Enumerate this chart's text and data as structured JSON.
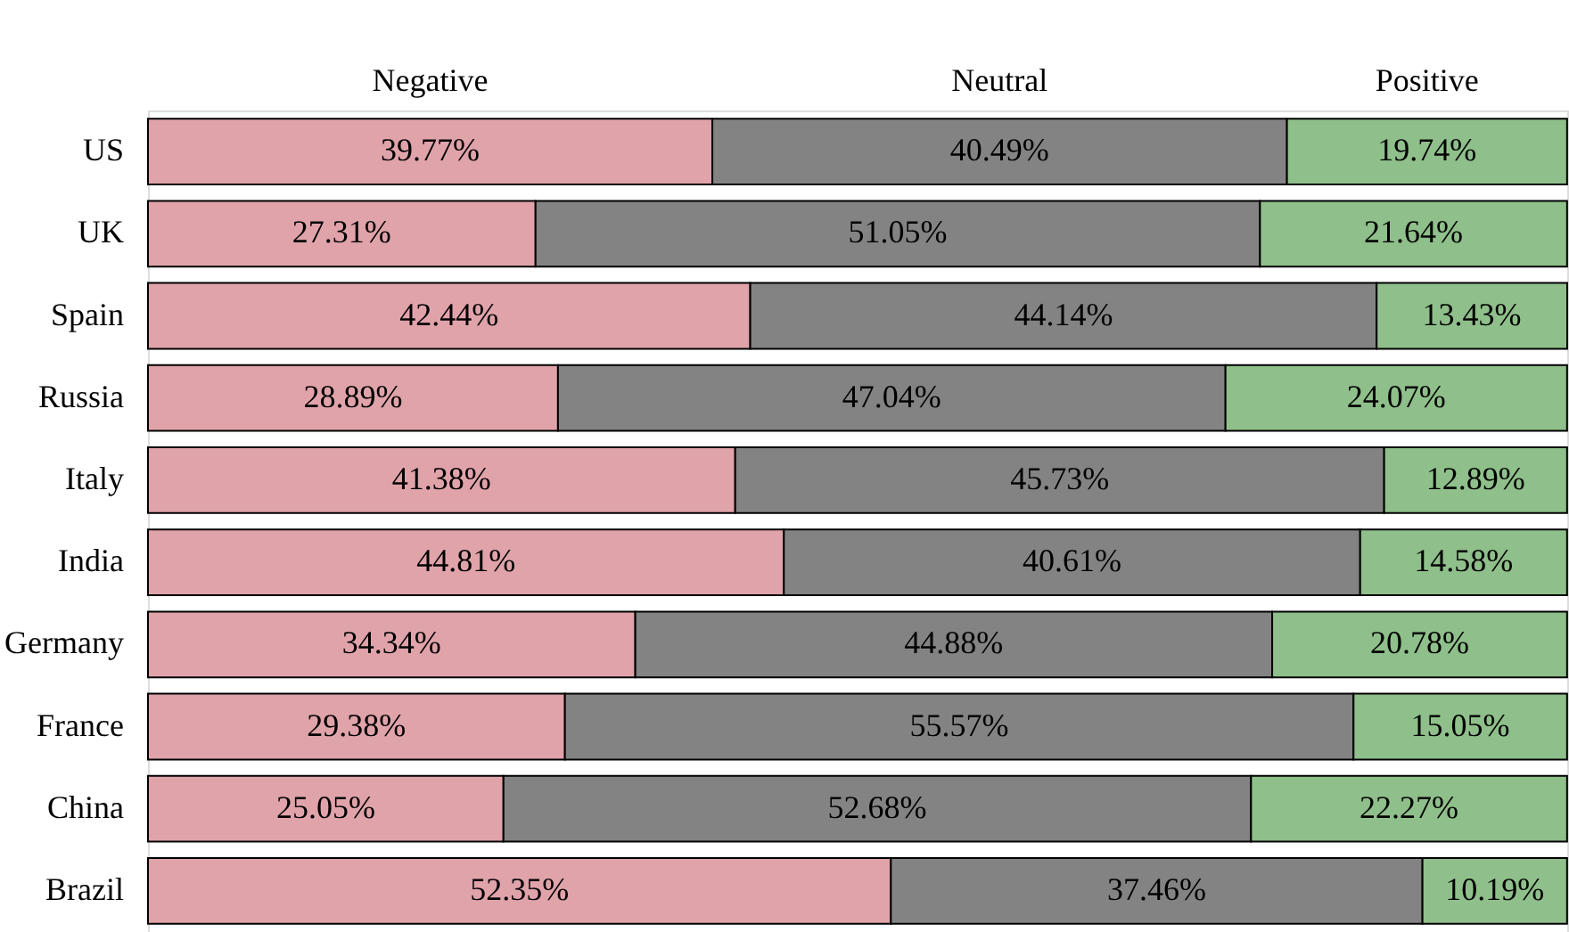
{
  "chart_data": {
    "type": "bar",
    "orientation": "horizontal",
    "stacked": true,
    "legend": "top",
    "tick_labels": "y",
    "grid": false,
    "categories": [
      "US",
      "UK",
      "Spain",
      "Russia",
      "Italy",
      "India",
      "Germany",
      "France",
      "China",
      "Brazil"
    ],
    "series": [
      {
        "name": "Negative",
        "color": "#e0a3aa",
        "values": [
          39.77,
          27.31,
          42.44,
          28.89,
          41.38,
          44.81,
          34.34,
          29.38,
          25.05,
          52.35
        ],
        "value_labels": [
          "39.77%",
          "27.31%",
          "42.44%",
          "28.89%",
          "41.38%",
          "44.81%",
          "34.34%",
          "29.38%",
          "25.05%",
          "52.35%"
        ]
      },
      {
        "name": "Neutral",
        "color": "#838383",
        "values": [
          40.49,
          51.05,
          44.14,
          47.04,
          45.73,
          40.61,
          44.88,
          55.57,
          52.68,
          37.46
        ],
        "value_labels": [
          "40.49%",
          "51.05%",
          "44.14%",
          "47.04%",
          "45.73%",
          "40.61%",
          "44.88%",
          "55.57%",
          "52.68%",
          "37.46%"
        ]
      },
      {
        "name": "Positive",
        "color": "#8fbf8a",
        "values": [
          19.74,
          21.64,
          13.43,
          24.07,
          12.89,
          14.58,
          20.78,
          15.05,
          22.27,
          10.19
        ],
        "value_labels": [
          "19.74%",
          "21.64%",
          "13.43%",
          "24.07%",
          "12.89%",
          "14.58%",
          "20.78%",
          "15.05%",
          "22.27%",
          "10.19%"
        ]
      }
    ]
  }
}
